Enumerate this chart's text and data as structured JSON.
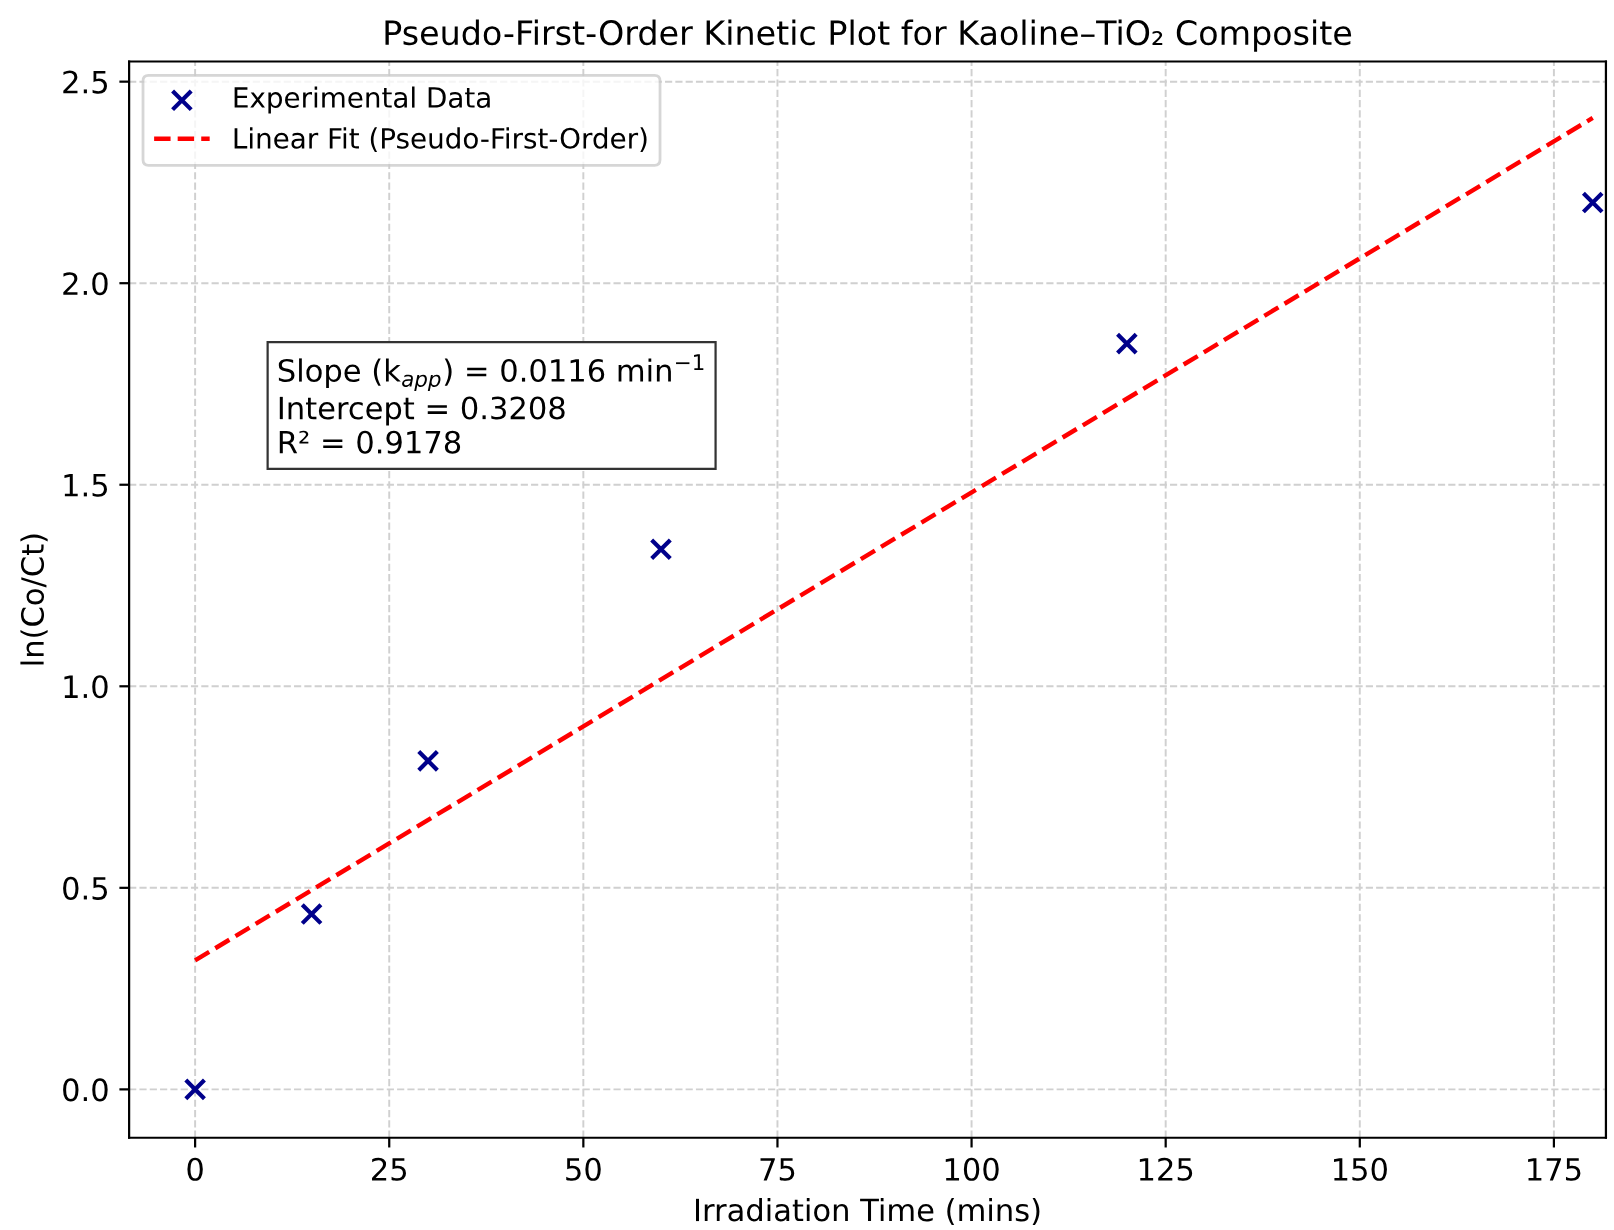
{
  "chart_data": {
    "type": "scatter",
    "title": "Pseudo-First-Order Kinetic Plot for Kaoline–TiO₂ Composite",
    "xlabel": "Irradiation Time (mins)",
    "ylabel": "ln(Co/Ct)",
    "series": [
      {
        "name": "Experimental Data",
        "color": "#00008b",
        "marker": "cross",
        "x": [
          0,
          15,
          30,
          60,
          120,
          180
        ],
        "values": [
          0.0,
          0.435,
          0.815,
          1.34,
          1.85,
          2.2
        ]
      },
      {
        "name": "Linear Fit (Pseudo-First-Order)",
        "type": "line",
        "color": "#ff0000",
        "line_style": "dashed",
        "marker": "none",
        "x": [
          0,
          180
        ],
        "values": [
          0.32,
          2.41
        ]
      }
    ],
    "annotations": [
      "Slope (k$_{app}$) = 0.0116 min$^{−1}$\nIntercept = 0.3208\nR² = 0.9178"
    ],
    "xlim": [
      -8.5,
      181.7
    ],
    "ylim": [
      -0.12,
      2.55
    ],
    "xticks": [
      0,
      25,
      50,
      75,
      100,
      125,
      150,
      175
    ],
    "yticks": [
      {
        "value": 0,
        "label": "0.0"
      },
      {
        "value": 0.5,
        "label": "0.5"
      },
      {
        "value": 1,
        "label": "1.0"
      },
      {
        "value": 1.5,
        "label": "1.5"
      },
      {
        "value": 2,
        "label": "2.0"
      },
      {
        "value": 2.5,
        "label": "2.5"
      }
    ],
    "grid": true,
    "legend": "top left"
  }
}
